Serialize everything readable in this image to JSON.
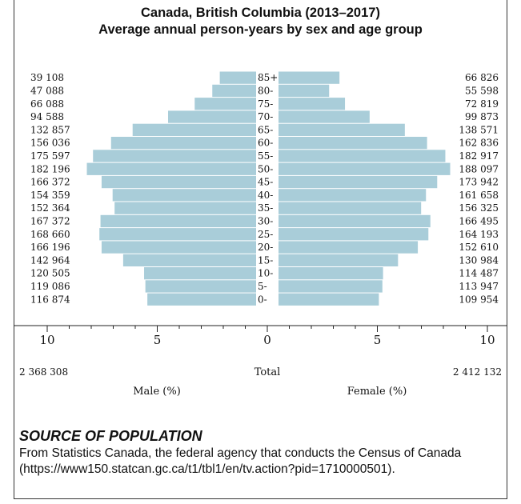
{
  "title_line1": "Canada, British Columbia (2013–2017)",
  "title_line2": "Average annual person-years by sex and age group",
  "chart_data": {
    "type": "bar",
    "orientation": "horizontal-population-pyramid",
    "categories": [
      "0-",
      "5-",
      "10-",
      "15-",
      "20-",
      "25-",
      "30-",
      "35-",
      "40-",
      "45-",
      "50-",
      "55-",
      "60-",
      "65-",
      "70-",
      "75-",
      "80-",
      "85+"
    ],
    "series": [
      {
        "name": "Male (%)",
        "color": "#a9cdd9",
        "values": [
          4.94,
          5.03,
          5.09,
          6.04,
          7.02,
          7.12,
          7.07,
          6.43,
          6.52,
          7.02,
          7.69,
          7.41,
          6.59,
          5.61,
          4.0,
          2.79,
          1.99,
          1.65
        ],
        "counts": [
          "116 874",
          "119 086",
          "120 505",
          "142 964",
          "166 196",
          "168 660",
          "167 372",
          "152 364",
          "154 359",
          "166 372",
          "182 196",
          "175 597",
          "156 036",
          "132 857",
          "94 588",
          "66 088",
          "47 088",
          "39 108"
        ]
      },
      {
        "name": "Female (%)",
        "color": "#a9cdd9",
        "values": [
          4.56,
          4.72,
          4.75,
          5.43,
          6.33,
          6.81,
          6.9,
          6.48,
          6.7,
          7.21,
          7.8,
          7.58,
          6.75,
          5.74,
          4.14,
          3.02,
          2.3,
          2.77
        ],
        "counts": [
          "109 954",
          "113 947",
          "114 487",
          "130 984",
          "152 610",
          "164 193",
          "166 495",
          "156 325",
          "161 658",
          "173 942",
          "188 097",
          "182 917",
          "162 836",
          "138 571",
          "99 873",
          "72 819",
          "55 598",
          "66 826"
        ]
      }
    ],
    "xlim": [
      -10,
      10
    ],
    "ticks": [
      {
        "value": -10,
        "label": "10"
      },
      {
        "value": -5,
        "label": "5"
      },
      {
        "value": 0,
        "label": "0"
      },
      {
        "value": 5,
        "label": "5"
      },
      {
        "value": 10,
        "label": "10"
      }
    ],
    "xlabel_left": "Male (%)",
    "xlabel_right": "Female (%)",
    "total_label": "Total",
    "total_male": "2 368 308",
    "total_female": "2 412 132"
  },
  "source": {
    "heading": "SOURCE OF POPULATION",
    "text": "From Statistics Canada, the federal agency that conducts the Census of Canada (https://www150.statcan.gc.ca/t1/tbl1/en/tv.action?pid=1710000501)."
  }
}
